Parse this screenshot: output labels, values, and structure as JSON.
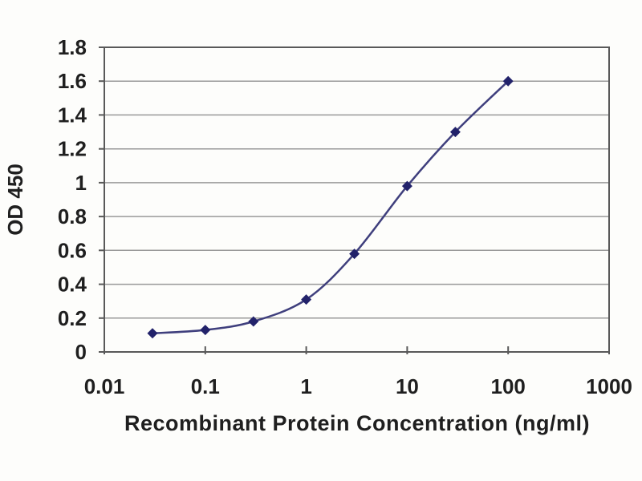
{
  "chart_data": {
    "type": "line",
    "title": "",
    "xlabel": "Recombinant Protein Concentration (ng/ml)",
    "ylabel": "OD 450",
    "x_scale": "log",
    "xlim": [
      0.01,
      1000
    ],
    "ylim": [
      0,
      1.8
    ],
    "x_ticks": [
      0.01,
      0.1,
      1,
      10,
      100,
      1000
    ],
    "x_tick_labels": [
      "0.01",
      "0.1",
      "1",
      "10",
      "100",
      "1000"
    ],
    "y_ticks": [
      0,
      0.2,
      0.4,
      0.6,
      0.8,
      1,
      1.2,
      1.4,
      1.6,
      1.8
    ],
    "y_tick_labels": [
      "0",
      "0.2",
      "0.4",
      "0.6",
      "0.8",
      "1",
      "1.2",
      "1.4",
      "1.6",
      "1.8"
    ],
    "grid": "horizontal-major",
    "legend": "none",
    "series": [
      {
        "name": "OD 450",
        "marker": "diamond",
        "line_style": "smooth",
        "x": [
          0.03,
          0.1,
          0.3,
          1,
          3,
          10,
          30,
          100
        ],
        "y": [
          0.11,
          0.13,
          0.18,
          0.31,
          0.58,
          0.98,
          1.3,
          1.6
        ]
      }
    ],
    "colors": {
      "line": "#3f3f7d",
      "marker": "#22226a",
      "gridline": "#999999",
      "axis": "#595959",
      "text": "#1f1f1f",
      "plot_background": "#fdfdfb"
    }
  }
}
